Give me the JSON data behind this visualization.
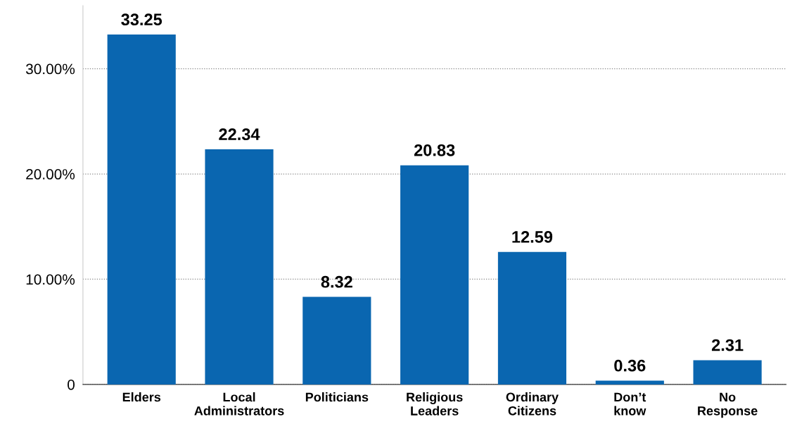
{
  "chart_data": {
    "type": "bar",
    "categories": [
      "Elders",
      "Local\nAdministrators",
      "Politicians",
      "Religious\nLeaders",
      "Ordinary\nCitizens",
      "Don’t\nknow",
      "No\nResponse"
    ],
    "values": [
      33.25,
      22.34,
      8.32,
      20.83,
      12.59,
      0.36,
      2.31
    ],
    "color": "#0a66b0",
    "ylim": [
      0,
      36
    ],
    "yticks": [
      0,
      {
        "value": 10,
        "label": "10.00%"
      },
      {
        "value": 20,
        "label": "20.00%"
      },
      {
        "value": 30,
        "label": "30.00%"
      }
    ],
    "grid": "y",
    "data_labels": true
  }
}
